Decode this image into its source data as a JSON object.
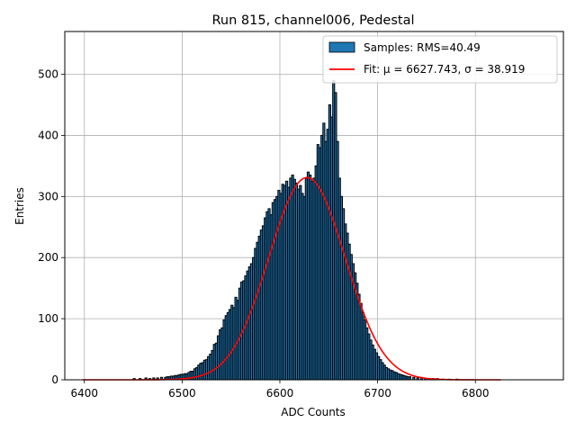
{
  "chart_data": {
    "type": "bar",
    "title": "Run 815, channel006, Pedestal",
    "xlabel": "ADC Counts",
    "ylabel": "Entries",
    "xlim": [
      6380,
      6890
    ],
    "ylim": [
      0,
      570
    ],
    "xticks": [
      6400,
      6500,
      6600,
      6700,
      6800
    ],
    "yticks": [
      0,
      100,
      200,
      300,
      400,
      500
    ],
    "grid": true,
    "legend_position": "upper right",
    "series": [
      {
        "name": "Samples: RMS=40.49",
        "kind": "histogram",
        "color": "#1f77b4",
        "edgecolor": "#000000",
        "bin_width": 2,
        "bins": [
          6450,
          6456,
          6462,
          6466,
          6470,
          6474,
          6478,
          6482,
          6484,
          6486,
          6488,
          6490,
          6492,
          6494,
          6496,
          6498,
          6500,
          6502,
          6504,
          6506,
          6508,
          6510,
          6512,
          6514,
          6516,
          6518,
          6520,
          6522,
          6524,
          6526,
          6528,
          6530,
          6532,
          6534,
          6536,
          6538,
          6540,
          6542,
          6544,
          6546,
          6548,
          6550,
          6552,
          6554,
          6556,
          6558,
          6560,
          6562,
          6564,
          6566,
          6568,
          6570,
          6572,
          6574,
          6576,
          6578,
          6580,
          6582,
          6584,
          6586,
          6588,
          6590,
          6592,
          6594,
          6596,
          6598,
          6600,
          6602,
          6604,
          6606,
          6608,
          6610,
          6612,
          6614,
          6616,
          6618,
          6620,
          6622,
          6624,
          6626,
          6628,
          6630,
          6632,
          6634,
          6636,
          6638,
          6640,
          6642,
          6644,
          6646,
          6648,
          6650,
          6652,
          6654,
          6656,
          6658,
          6660,
          6662,
          6664,
          6666,
          6668,
          6670,
          6672,
          6674,
          6676,
          6678,
          6680,
          6682,
          6684,
          6686,
          6688,
          6690,
          6692,
          6694,
          6696,
          6698,
          6700,
          6702,
          6704,
          6706,
          6708,
          6710,
          6712,
          6714,
          6716,
          6718,
          6720,
          6722,
          6724,
          6726,
          6728,
          6730,
          6732,
          6736,
          6740,
          6744,
          6748,
          6752,
          6756,
          6760,
          6766,
          6772,
          6780
        ],
        "counts": [
          2,
          2,
          3,
          2,
          3,
          3,
          4,
          4,
          5,
          5,
          6,
          6,
          7,
          7,
          8,
          9,
          9,
          10,
          10,
          12,
          14,
          14,
          18,
          20,
          24,
          27,
          28,
          32,
          33,
          38,
          42,
          48,
          58,
          60,
          72,
          82,
          85,
          98,
          105,
          110,
          115,
          122,
          118,
          135,
          130,
          150,
          160,
          162,
          170,
          178,
          185,
          190,
          200,
          215,
          225,
          235,
          245,
          252,
          265,
          275,
          280,
          270,
          290,
          295,
          300,
          310,
          305,
          320,
          318,
          325,
          315,
          330,
          335,
          328,
          322,
          312,
          318,
          305,
          300,
          330,
          340,
          335,
          325,
          330,
          350,
          385,
          380,
          400,
          420,
          390,
          410,
          450,
          430,
          490,
          470,
          390,
          330,
          300,
          280,
          255,
          240,
          222,
          205,
          190,
          175,
          158,
          140,
          125,
          110,
          98,
          85,
          75,
          65,
          57,
          50,
          44,
          38,
          33,
          28,
          24,
          20,
          18,
          16,
          15,
          13,
          12,
          10,
          9,
          8,
          7,
          6,
          5,
          5,
          4,
          3,
          3,
          2,
          2,
          2,
          2,
          1,
          1,
          1
        ]
      },
      {
        "name": "Fit: μ = 6627.743, σ = 38.919",
        "kind": "gaussian",
        "color": "#ff0000",
        "mu": 6627.743,
        "sigma": 38.919,
        "amplitude": 331,
        "x_range": [
          6398,
          6826
        ]
      }
    ]
  }
}
